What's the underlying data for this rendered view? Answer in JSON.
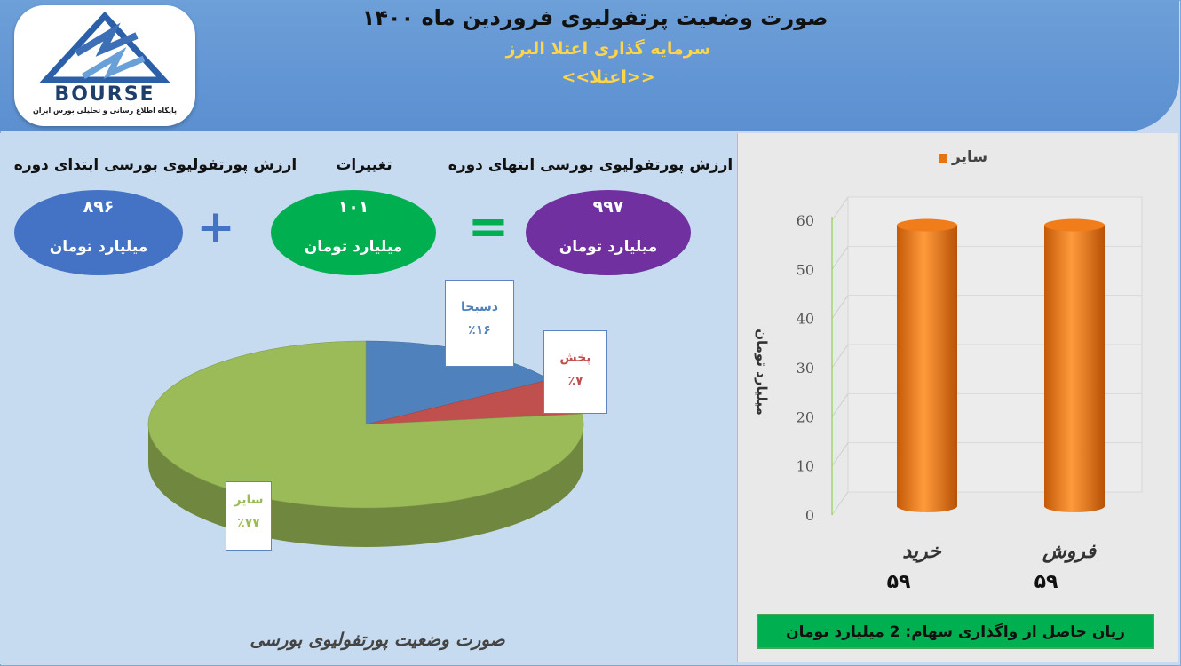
{
  "header": {
    "title": "صورت وضعیت پرتفولیوی فروردین ماه ۱۴۰۰",
    "subtitle": "سرمایه گذاری اعتلا البرز",
    "symbol": "<<اعتلا>>",
    "logo_word": "BOURSE",
    "logo_sub": "پایگاه اطلاع رسانی و تحلیلی بورس ایران"
  },
  "summary": {
    "start_label": "ارزش پورتفولیوی بورسی ابتدای دوره",
    "start_value": "۸۹۶",
    "change_label": "تغییرات",
    "change_value": "۱۰۱",
    "end_label": "ارزش پورتفولیوی بورسی انتهای دوره",
    "end_value": "۹۹۷",
    "unit": "میلیارد تومان",
    "plus": "+",
    "equals": "=",
    "colors": {
      "start": "#4472c4",
      "change": "#00b050",
      "end": "#7030a0"
    }
  },
  "chart_data": [
    {
      "type": "pie",
      "title": "صورت وضعیت پورتفولیوی بورسی",
      "slices": [
        {
          "label": "دسبحا",
          "value": 16,
          "value_label": "٪۱۶",
          "color": "#4f81bd"
        },
        {
          "label": "پخش",
          "value": 7,
          "value_label": "٪۷",
          "color": "#c0504d"
        },
        {
          "label": "سایر",
          "value": 77,
          "value_label": "٪۷۷",
          "color": "#9bbb59"
        }
      ]
    },
    {
      "type": "bar",
      "legend": [
        "سایر"
      ],
      "legend_position": "top",
      "ylabel": "میلیارد تومان",
      "ylim": [
        0,
        60
      ],
      "yticks": [
        "0",
        "10",
        "20",
        "30",
        "40",
        "50",
        "60"
      ],
      "categories": [
        "خرید",
        "فروش"
      ],
      "values": [
        59,
        59
      ],
      "value_labels": [
        "۵۹",
        "۵۹"
      ],
      "series_color": "#e8740f",
      "note": "زیان حاصل از واگذاری سهام: 2 میلیارد تومان"
    }
  ]
}
